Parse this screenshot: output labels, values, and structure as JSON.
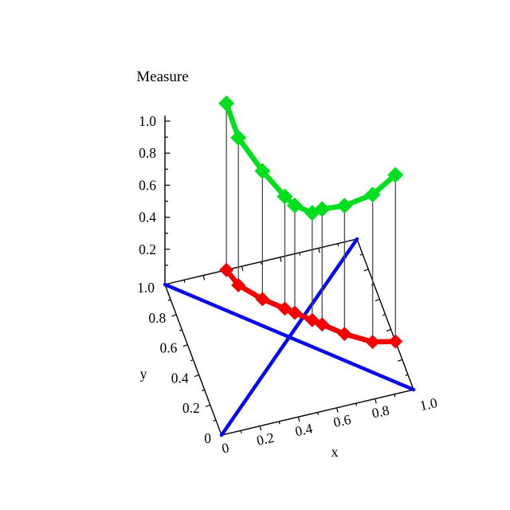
{
  "page": {
    "background": "#ffffff"
  },
  "chart_data": {
    "type": "line",
    "projection": "3d",
    "title": "Measure",
    "xlabel": "x",
    "ylabel": "y",
    "zlabel": "Measure",
    "xlim": [
      0,
      1.0
    ],
    "ylim": [
      0,
      1.0
    ],
    "zlim": [
      0,
      1.0
    ],
    "x_tick_values": [
      0,
      0.2,
      0.4,
      0.6,
      0.8,
      1.0
    ],
    "x_tick_labels": [
      "0",
      "0.2",
      "0.4",
      "0.6",
      "0.8",
      "1.0"
    ],
    "y_tick_values": [
      0,
      0.2,
      0.4,
      0.6,
      0.8,
      1.0
    ],
    "y_tick_labels": [
      "0",
      "0.2",
      "0.4",
      "0.6",
      "0.8",
      "1.0"
    ],
    "z_tick_values": [
      0.2,
      0.4,
      0.6,
      0.8,
      1.0
    ],
    "z_tick_labels": [
      "0.2",
      "0.4",
      "0.6",
      "0.8",
      "1.0"
    ],
    "minor_tick_step": 0.1,
    "grid": false,
    "legend": null,
    "points": [
      {
        "x": 0.32,
        "y": 1.0,
        "measure": 1.04
      },
      {
        "x": 0.35,
        "y": 0.89,
        "measure": 0.92
      },
      {
        "x": 0.44,
        "y": 0.77,
        "measure": 0.8
      },
      {
        "x": 0.53,
        "y": 0.68,
        "measure": 0.7
      },
      {
        "x": 0.57,
        "y": 0.64,
        "measure": 0.67
      },
      {
        "x": 0.64,
        "y": 0.57,
        "measure": 0.67
      },
      {
        "x": 0.68,
        "y": 0.53,
        "measure": 0.72
      },
      {
        "x": 0.77,
        "y": 0.44,
        "measure": 0.8
      },
      {
        "x": 0.89,
        "y": 0.35,
        "measure": 0.92
      },
      {
        "x": 1.0,
        "y": 0.32,
        "measure": 1.04
      }
    ],
    "series": [
      {
        "name": "measure-curve",
        "role": "elevated-z-curve",
        "color": "#00DF1F",
        "marker": "diamond",
        "line_width": 6.5
      },
      {
        "name": "base-path-curve",
        "role": "base-plane-projection",
        "color": "#F50000",
        "marker": "diamond",
        "line_width": 6.5
      }
    ],
    "reference_lines": [
      {
        "name": "base-diagonal",
        "from_xy": [
          0,
          0
        ],
        "to_xy": [
          1,
          1
        ],
        "color": "#0808F0",
        "line_width": 4.5
      },
      {
        "name": "base-antidiagonal",
        "from_xy": [
          0,
          1
        ],
        "to_xy": [
          1,
          0
        ],
        "color": "#0808F0",
        "line_width": 4.5
      }
    ],
    "drop_lines": {
      "show": true,
      "color": "#4a4a4a",
      "line_width": 1.3
    },
    "axis_color": "#000000"
  }
}
